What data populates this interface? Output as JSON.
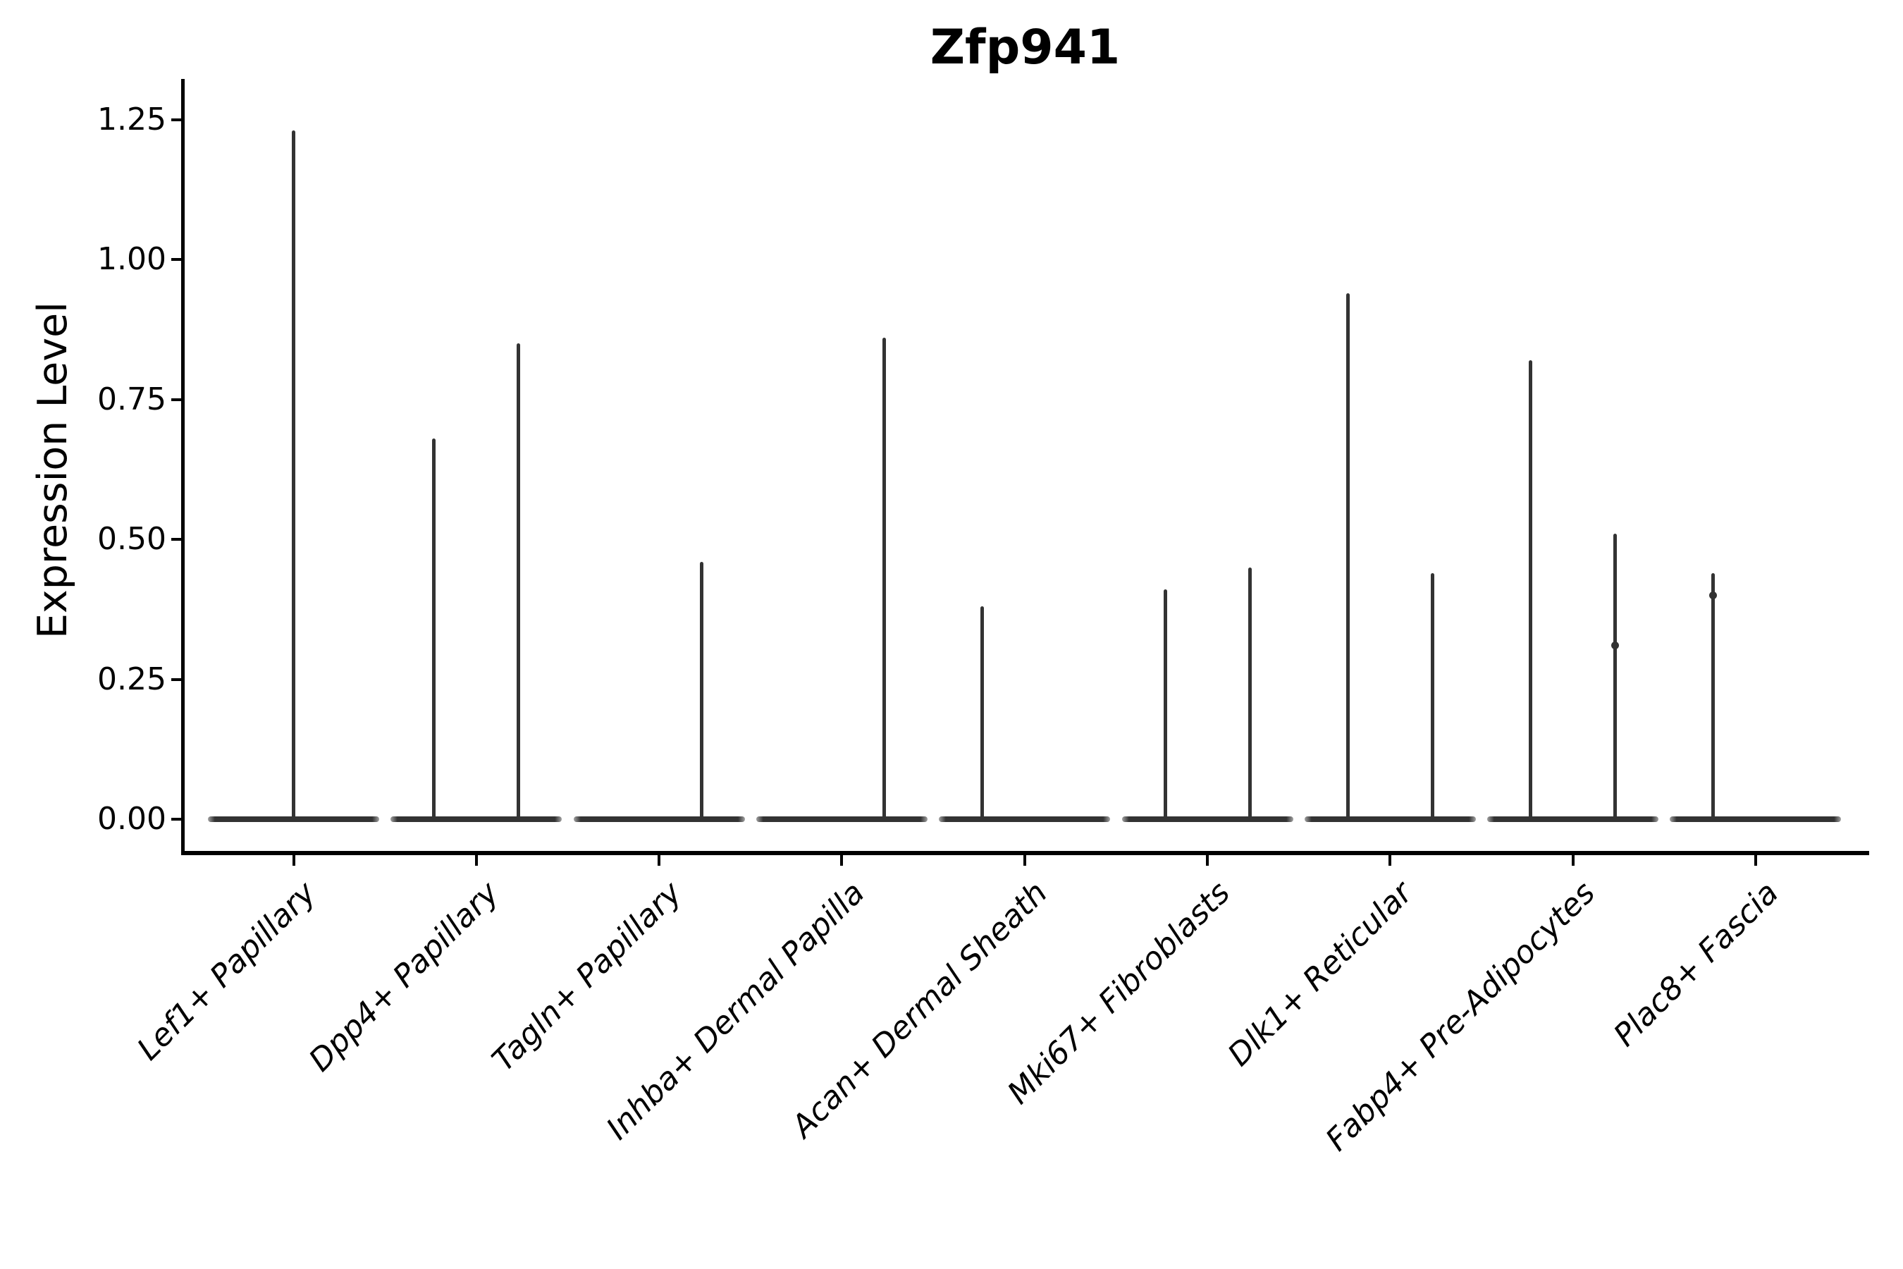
{
  "figure": {
    "title": "Zfp941",
    "ylabel": "Expression Level"
  },
  "chart_data": {
    "type": "violin",
    "title": "Zfp941",
    "xlabel": "",
    "ylabel": "Expression Level",
    "ylim": [
      0,
      1.3
    ],
    "yticks": [
      "0.00",
      "0.25",
      "0.50",
      "0.75",
      "1.00",
      "1.25"
    ],
    "ytick_values": [
      0,
      0.25,
      0.5,
      0.75,
      1.0,
      1.25
    ],
    "grid": false,
    "legend": "none",
    "line_color": "#333333",
    "axis_color": "#000000",
    "categories": [
      "Lef1+ Papillary",
      "Dpp4+ Papillary",
      "Tagln+ Papillary",
      "Inhba+ Dermal Papilla",
      "Acan+ Dermal Sheath",
      "Mki67+ Fibroblasts",
      "Dlk1+ Reticular",
      "Fabp4+ Pre-Adipocytes",
      "Plac8+ Fascia"
    ],
    "violins": [
      {
        "category": "Lef1+ Papillary",
        "baseline_value": 0,
        "spikes": [
          {
            "position": "center",
            "max": 1.23,
            "dots": []
          }
        ]
      },
      {
        "category": "Dpp4+ Papillary",
        "baseline_value": 0,
        "spikes": [
          {
            "position": "left",
            "max": 0.68,
            "dots": []
          },
          {
            "position": "right",
            "max": 0.85,
            "dots": []
          }
        ]
      },
      {
        "category": "Tagln+ Papillary",
        "baseline_value": 0,
        "spikes": [
          {
            "position": "right",
            "max": 0.46,
            "dots": []
          }
        ]
      },
      {
        "category": "Inhba+ Dermal Papilla",
        "baseline_value": 0,
        "spikes": [
          {
            "position": "right",
            "max": 0.86,
            "dots": []
          }
        ]
      },
      {
        "category": "Acan+ Dermal Sheath",
        "baseline_value": 0,
        "spikes": [
          {
            "position": "left",
            "max": 0.38,
            "dots": []
          }
        ]
      },
      {
        "category": "Mki67+ Fibroblasts",
        "baseline_value": 0,
        "spikes": [
          {
            "position": "left",
            "max": 0.41,
            "dots": []
          },
          {
            "position": "right",
            "max": 0.45,
            "dots": []
          }
        ]
      },
      {
        "category": "Dlk1+ Reticular",
        "baseline_value": 0,
        "spikes": [
          {
            "position": "left",
            "max": 0.94,
            "dots": []
          },
          {
            "position": "right",
            "max": 0.44,
            "dots": []
          }
        ]
      },
      {
        "category": "Fabp4+ Pre-Adipocytes",
        "baseline_value": 0,
        "spikes": [
          {
            "position": "left",
            "max": 0.82,
            "dots": []
          },
          {
            "position": "right",
            "max": 0.51,
            "dots": [
              0.31
            ]
          }
        ]
      },
      {
        "category": "Plac8+ Fascia",
        "baseline_value": 0,
        "spikes": [
          {
            "position": "left",
            "max": 0.44,
            "dots": [
              0.4
            ]
          }
        ]
      }
    ]
  }
}
